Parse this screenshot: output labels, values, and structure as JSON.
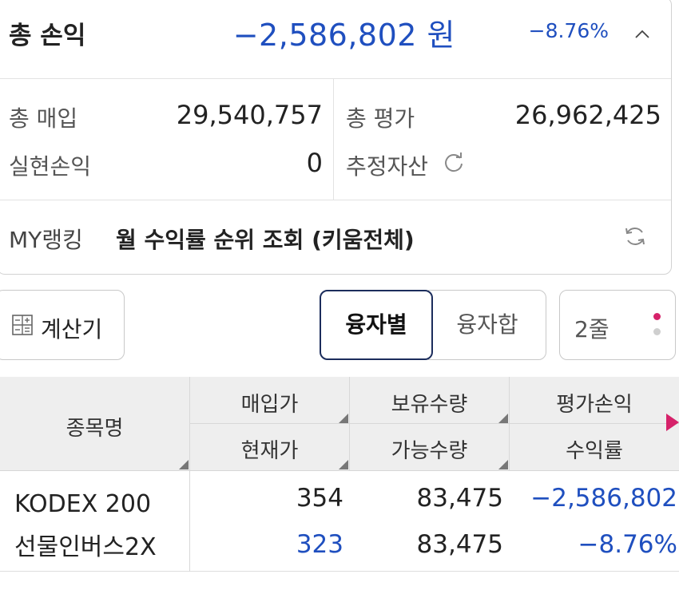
{
  "summary": {
    "total_label": "총 손익",
    "total_value": "−2,586,802 원",
    "total_rate": "−8.76%",
    "purchase_label": "총 매입",
    "purchase_value": "29,540,757",
    "evaluation_label": "총 평가",
    "evaluation_value": "26,962,425",
    "realized_label": "실현손익",
    "realized_value": "0",
    "estimated_assets_label": "추정자산"
  },
  "ranking": {
    "label": "MY랭킹",
    "text": "월 수익률 순위 조회 (키움전체)"
  },
  "toolbar": {
    "calculator_label": "계산기",
    "by_loan_label": "융자별",
    "loan_sum_label": "융자합",
    "lines_label": "2줄"
  },
  "table": {
    "headers": {
      "name": "종목명",
      "purchase_price": "매입가",
      "current_price": "현재가",
      "holding_qty": "보유수량",
      "available_qty": "가능수량",
      "eval_pl": "평가손익",
      "return_rate": "수익률"
    },
    "rows": [
      {
        "name_line1": "KODEX 200",
        "name_line2": "선물인버스2X",
        "purchase_price": "354",
        "current_price": "323",
        "holding_qty": "83,475",
        "available_qty": "83,475",
        "eval_pl": "−2,586,802",
        "return_rate": "−8.76%"
      }
    ]
  },
  "colors": {
    "negative": "#1f4fbf",
    "accent": "#d6226a",
    "active_border": "#1c2d5c"
  },
  "icons": [
    "chevron-up-icon",
    "refresh-icon",
    "calculator-icon",
    "more-dots-icon",
    "scroll-right-arrow-icon"
  ]
}
